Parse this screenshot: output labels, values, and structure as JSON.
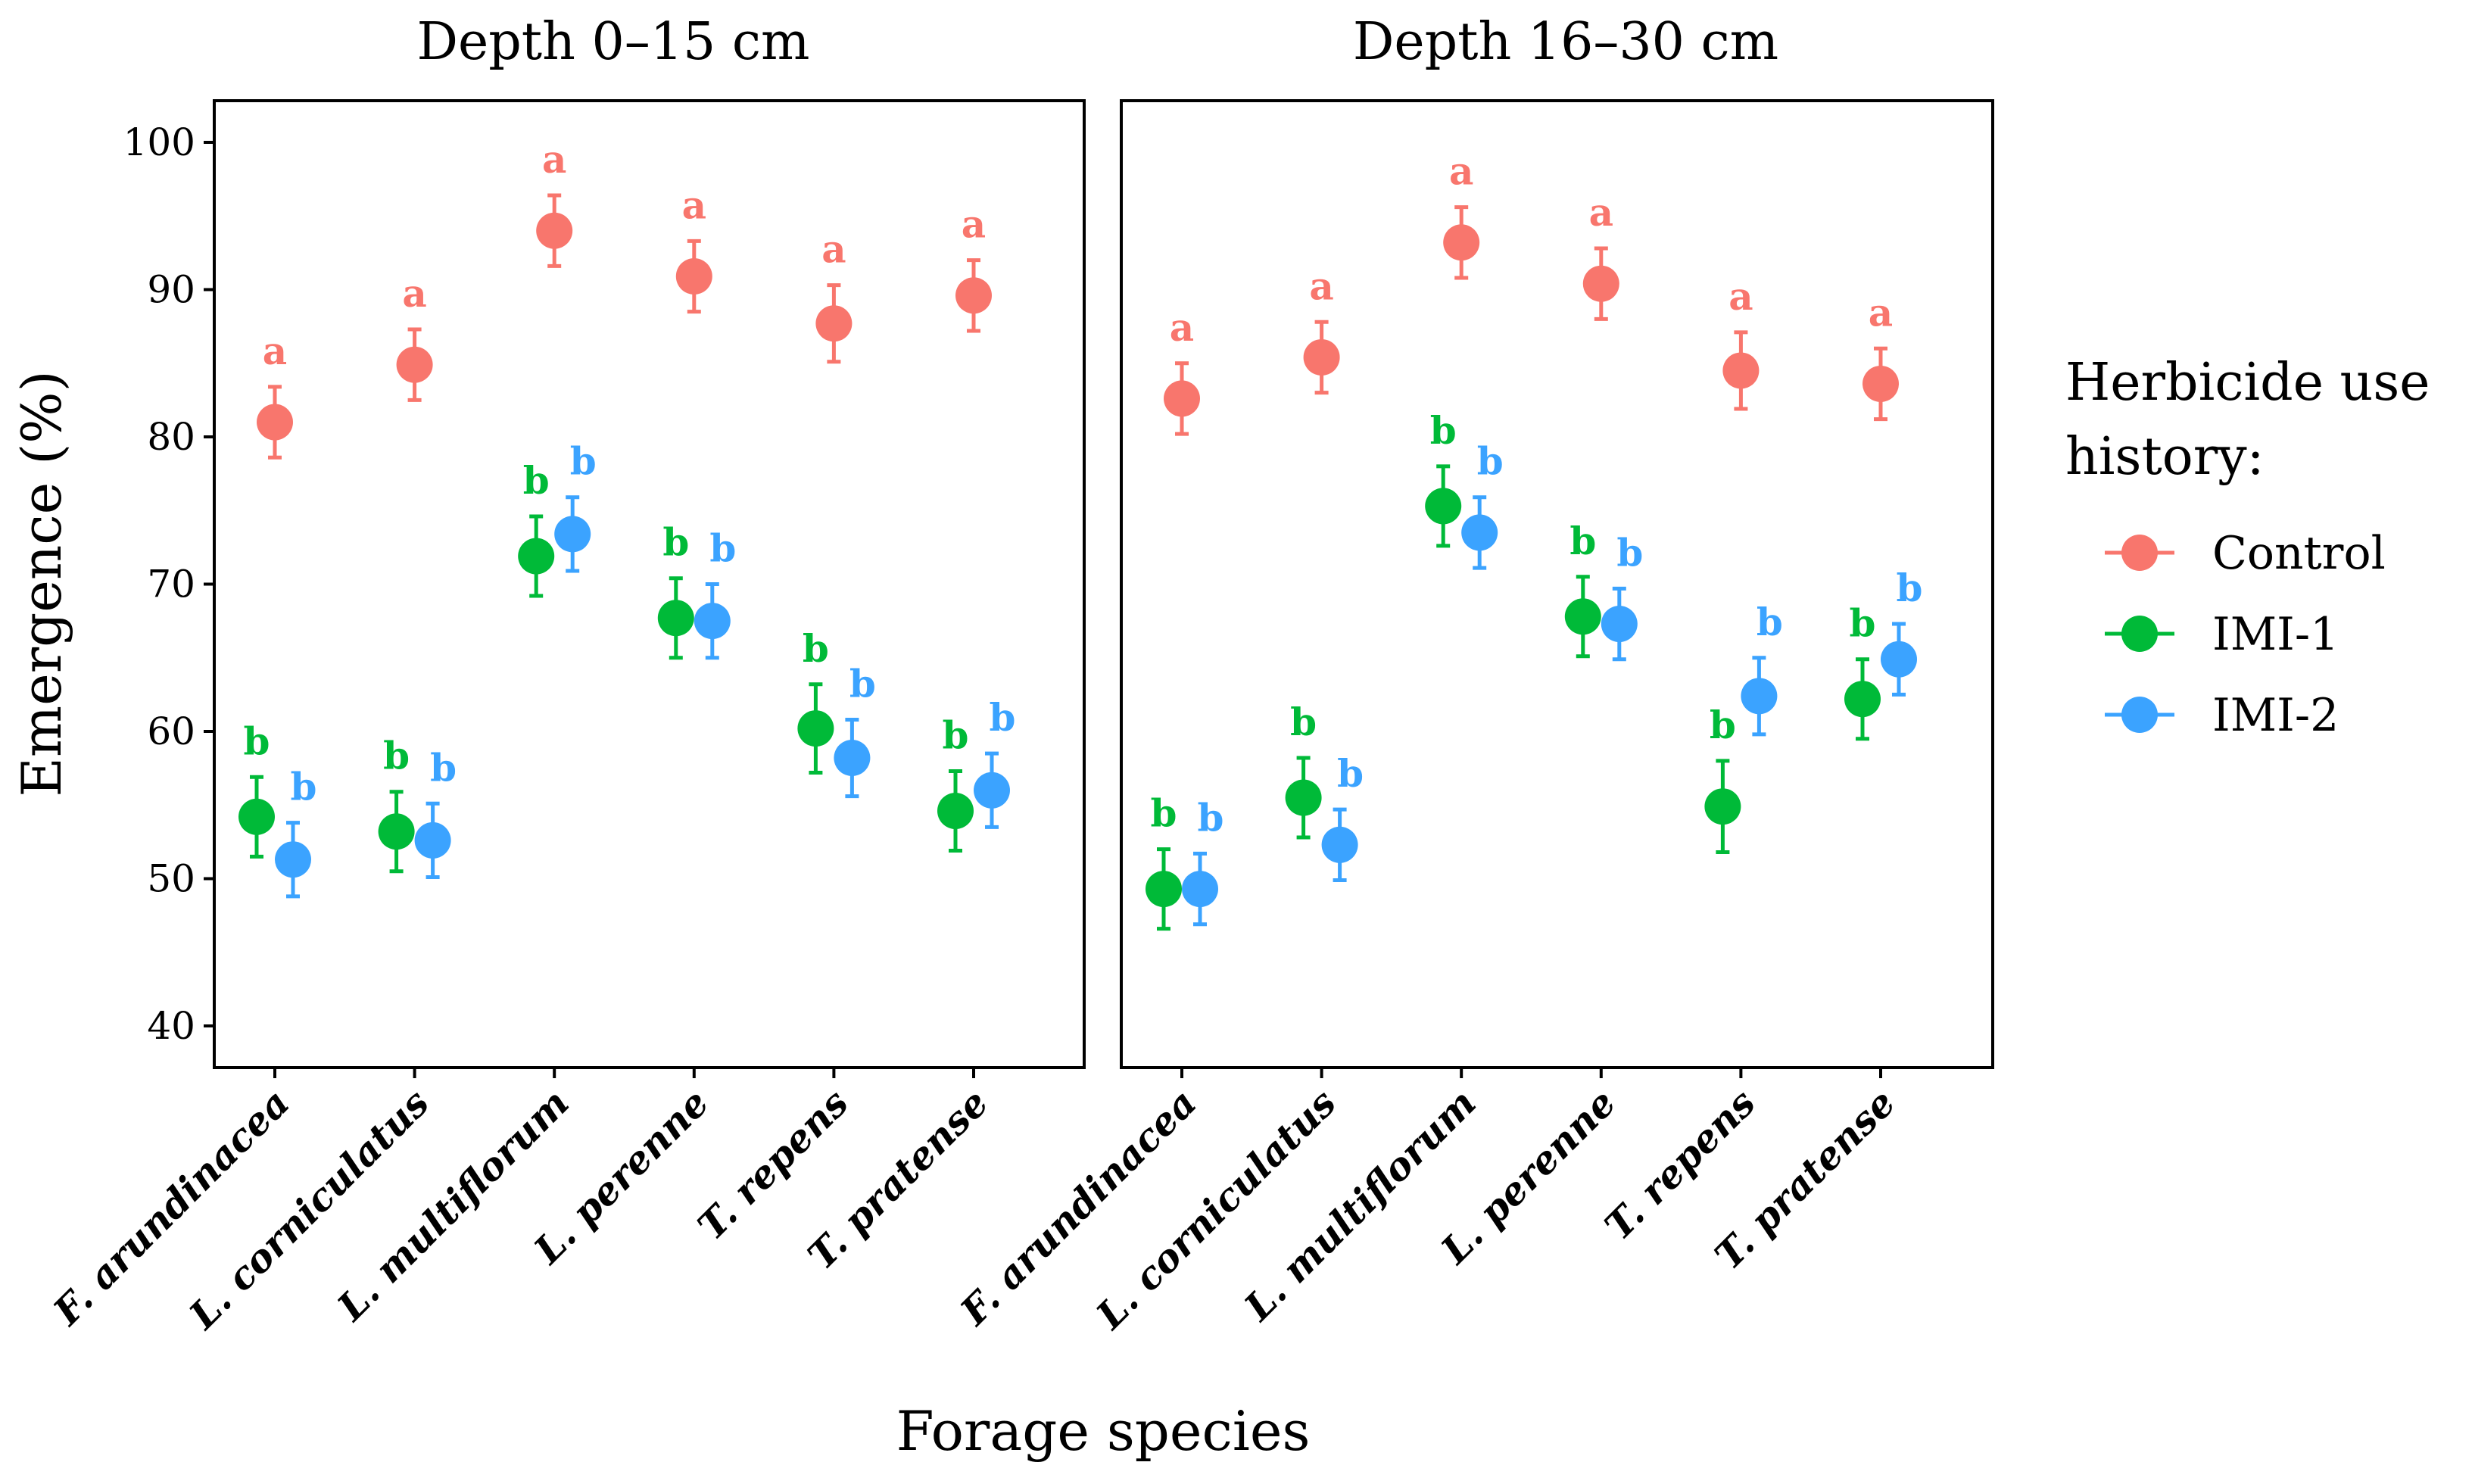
{
  "chart_data": {
    "type": "scatter",
    "ylabel": "Emergence (%)",
    "xlabel": "Forage species",
    "ylim": [
      37,
      103
    ],
    "yticks": [
      40,
      50,
      60,
      70,
      80,
      90,
      100
    ],
    "categories": [
      "F. arundinacea",
      "L. corniculatus",
      "L. multiflorum",
      "L. perenne",
      "T. repens",
      "T. pratense"
    ],
    "legend": {
      "title_line1": "Herbicide use",
      "title_line2": "history:",
      "entries": [
        {
          "name": "Control",
          "color": "#F8766D"
        },
        {
          "name": "IMI-1",
          "color": "#00BA38"
        },
        {
          "name": "IMI-2",
          "color": "#3BA3FF"
        }
      ]
    },
    "panels": [
      {
        "title": "Depth 0–15 cm",
        "series": [
          {
            "name": "Control",
            "color": "#F8766D",
            "values": [
              81.0,
              84.9,
              94.0,
              90.9,
              87.7,
              89.6
            ],
            "error": [
              2.4,
              2.4,
              2.4,
              2.4,
              2.6,
              2.4
            ],
            "letters": [
              "a",
              "a",
              "a",
              "a",
              "a",
              "a"
            ]
          },
          {
            "name": "IMI-1",
            "color": "#00BA38",
            "values": [
              54.2,
              53.2,
              71.9,
              67.7,
              60.2,
              54.6
            ],
            "error": [
              2.7,
              2.7,
              2.7,
              2.7,
              3.0,
              2.7
            ],
            "letters": [
              "b",
              "b",
              "b",
              "b",
              "b",
              "b"
            ]
          },
          {
            "name": "IMI-2",
            "color": "#3BA3FF",
            "values": [
              51.3,
              52.6,
              73.4,
              67.5,
              58.2,
              56.0
            ],
            "error": [
              2.5,
              2.5,
              2.5,
              2.5,
              2.6,
              2.5
            ],
            "letters": [
              "b",
              "b",
              "b",
              "b",
              "b",
              "b"
            ]
          }
        ]
      },
      {
        "title": "Depth 16–30 cm",
        "series": [
          {
            "name": "Control",
            "color": "#F8766D",
            "values": [
              82.6,
              85.4,
              93.2,
              90.4,
              84.5,
              83.6
            ],
            "error": [
              2.4,
              2.4,
              2.4,
              2.4,
              2.6,
              2.4
            ],
            "letters": [
              "a",
              "a",
              "a",
              "a",
              "a",
              "a"
            ]
          },
          {
            "name": "IMI-1",
            "color": "#00BA38",
            "values": [
              49.3,
              55.5,
              75.3,
              67.8,
              54.9,
              62.2
            ],
            "error": [
              2.7,
              2.7,
              2.7,
              2.7,
              3.1,
              2.7
            ],
            "letters": [
              "b",
              "b",
              "b",
              "b",
              "b",
              "b"
            ]
          },
          {
            "name": "IMI-2",
            "color": "#3BA3FF",
            "values": [
              49.3,
              52.3,
              73.5,
              67.3,
              62.4,
              64.9
            ],
            "error": [
              2.4,
              2.4,
              2.4,
              2.4,
              2.6,
              2.4
            ],
            "letters": [
              "b",
              "b",
              "b",
              "b",
              "b",
              "b"
            ]
          }
        ]
      }
    ]
  }
}
